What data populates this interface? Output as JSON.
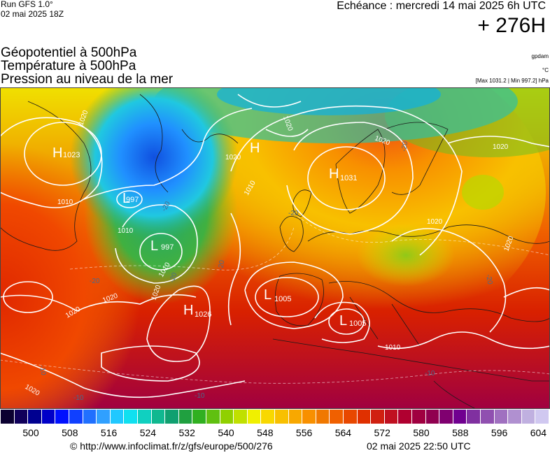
{
  "header": {
    "run": "Run GFS 1.0°",
    "run_date": "02 mai 2025 18Z",
    "echeance": "Echéance : mercredi 14 mai 2025 6h UTC",
    "horizon": "+ 276H",
    "unit_gpdam": "gpdam",
    "unit_celsius": "°C",
    "pressure_range": "[Max 1031.2 | Min 997.2] hPa"
  },
  "titles": {
    "line1": "Géopotentiel à 500hPa",
    "line2": "Température à 500hPa",
    "line3": "Pression au niveau de la mer"
  },
  "centers": [
    {
      "type": "H",
      "value": "1023"
    },
    {
      "type": "L",
      "value": "997"
    },
    {
      "type": "L",
      "value": "997"
    },
    {
      "type": "H",
      "value": ""
    },
    {
      "type": "H",
      "value": "1031"
    },
    {
      "type": "H",
      "value": "1026"
    },
    {
      "type": "L",
      "value": "1005"
    },
    {
      "type": "L",
      "value": "1005"
    }
  ],
  "isobar_labels": [
    "1020",
    "1010",
    "1010",
    "1020",
    "1020",
    "1020",
    "1010",
    "1020",
    "1020",
    "1020",
    "1020",
    "1010",
    "1020",
    "1020",
    "1020",
    "1010"
  ],
  "temp_labels": [
    "-20",
    "-20",
    "-20",
    "-20",
    "-20",
    "-20",
    "-20",
    "-10",
    "-10",
    "-10",
    "-10"
  ],
  "scale": {
    "labels": [
      "500",
      "508",
      "516",
      "524",
      "532",
      "540",
      "548",
      "556",
      "564",
      "572",
      "580",
      "588",
      "596",
      "604"
    ],
    "colors": [
      "#0b0030",
      "#10005a",
      "#000090",
      "#0000c8",
      "#0010ff",
      "#1040ff",
      "#2070ff",
      "#30a0ff",
      "#20c8ff",
      "#10e0f0",
      "#10d0c0",
      "#10b890",
      "#10a070",
      "#20a040",
      "#30b020",
      "#60c010",
      "#90d000",
      "#c0e000",
      "#f0f000",
      "#f8d800",
      "#f8c000",
      "#f8a800",
      "#f89000",
      "#f07800",
      "#f06000",
      "#e84800",
      "#e03000",
      "#d02010",
      "#c01020",
      "#b00030",
      "#a00040",
      "#900050",
      "#800070",
      "#700090",
      "#8030a0",
      "#9050b0",
      "#a070c0",
      "#b090d0",
      "#c0b0e0",
      "#d0c8f0"
    ]
  },
  "footer": {
    "url": "© http://www.infoclimat.fr/z/gfs/europe/500/276",
    "date": "02 mai 2025 22:50 UTC"
  }
}
